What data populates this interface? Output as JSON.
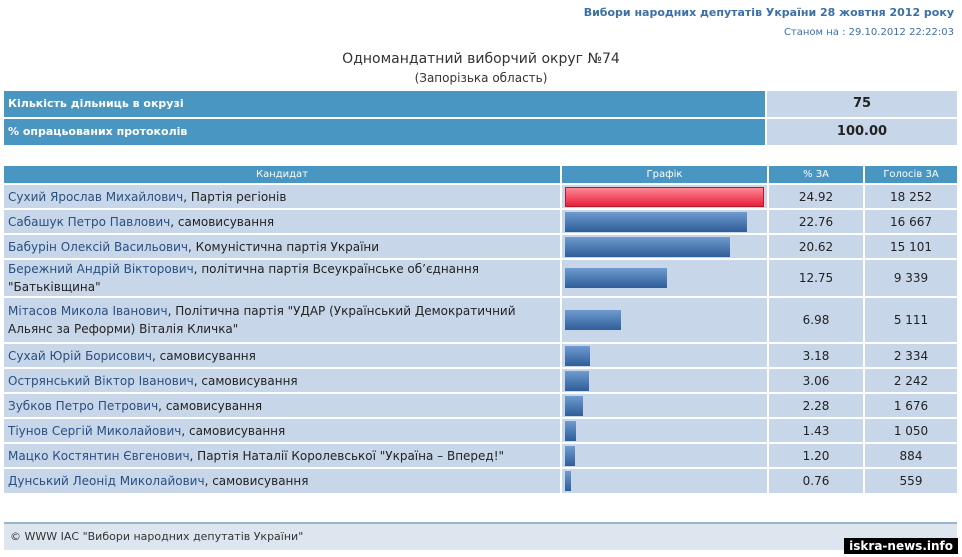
{
  "header": {
    "title": "Вибори народних депутатів України 28 жовтня 2012 року",
    "status": "Станом на : 29.10.2012 22:22:03"
  },
  "district": {
    "title": "Одномандатний виборчий округ №74",
    "region": "(Запорізька область)"
  },
  "stats": [
    {
      "label": "Кількість дільниць в окрузі",
      "value": "75"
    },
    {
      "label": "% опрацьованих протоколів",
      "value": "100.00"
    }
  ],
  "table": {
    "headers": [
      "Кандидат",
      "Графік",
      "% ЗА",
      "Голосів ЗА"
    ],
    "rows": [
      {
        "name": "Сухий Ярослав Михайлович",
        "party": "Партія регіонів",
        "pct": "24.92",
        "votes": "18 252",
        "share": 24.92
      },
      {
        "name": "Сабашук Петро Павлович",
        "party": "самовисування",
        "pct": "22.76",
        "votes": "16 667",
        "share": 22.76
      },
      {
        "name": "Бабурін Олексій Васильович",
        "party": "Комуністична партія України",
        "pct": "20.62",
        "votes": "15 101",
        "share": 20.62
      },
      {
        "name": "Бережний Андрій Вікторович",
        "party": "політична партія Всеукраїнське об’єднання \"Батьківщина\"",
        "pct": "12.75",
        "votes": "9 339",
        "share": 12.75
      },
      {
        "name": "Мітасов Микола Іванович",
        "party": "Політична партія \"УДАР (Український Демократичний Альянс за Реформи) Віталія Кличка\"",
        "pct": "6.98",
        "votes": "5 111",
        "share": 6.98
      },
      {
        "name": "Сухай Юрій Борисович",
        "party": "самовисування",
        "pct": "3.18",
        "votes": "2 334",
        "share": 3.18
      },
      {
        "name": "Острянський Віктор Іванович",
        "party": "самовисування",
        "pct": "3.06",
        "votes": "2 242",
        "share": 3.06
      },
      {
        "name": "Зубков Петро Петрович",
        "party": "самовисування",
        "pct": "2.28",
        "votes": "1 676",
        "share": 2.28
      },
      {
        "name": "Тіунов Сергій Миколайович",
        "party": "самовисування",
        "pct": "1.43",
        "votes": "1 050",
        "share": 1.43
      },
      {
        "name": "Мацко Костянтин Євгенович",
        "party": "Партія Наталії Королевської \"Україна – Вперед!\"",
        "pct": "1.20",
        "votes": "884",
        "share": 1.2
      },
      {
        "name": "Дунський Леонід Миколайович",
        "party": "самовисування",
        "pct": "0.76",
        "votes": "559",
        "share": 0.76
      }
    ]
  },
  "colors": {
    "header_blue": "#4a96c2",
    "cell_bg": "#c7d7e9",
    "lead_bar": "#e8203c",
    "bar": "#3f6ea8"
  },
  "footer": {
    "text": "© WWW ІАС \"Вибори народних депутатів України\""
  },
  "watermark": "iskra-news.info"
}
